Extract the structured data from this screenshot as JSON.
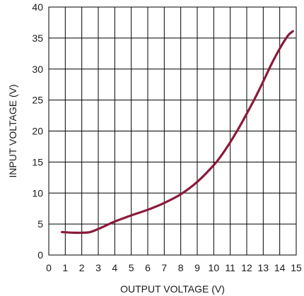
{
  "chart_data": {
    "type": "line",
    "xlabel": "OUTPUT VOLTAGE (V)",
    "ylabel": "INPUT VOLTAGE (V)",
    "xlim": [
      0,
      15
    ],
    "ylim": [
      0,
      40
    ],
    "xticks": [
      0,
      1,
      2,
      3,
      4,
      5,
      6,
      7,
      8,
      9,
      10,
      11,
      12,
      13,
      14,
      15
    ],
    "yticks": [
      0,
      5,
      10,
      15,
      20,
      25,
      30,
      35,
      40
    ],
    "grid": true,
    "series": [
      {
        "color": "#8b1a3a",
        "x": [
          0.8,
          1.5,
          2.0,
          2.5,
          3.0,
          3.5,
          4.0,
          5.0,
          6.0,
          7.0,
          8.0,
          9.0,
          10.0,
          10.5,
          11.0,
          11.5,
          12.0,
          12.5,
          13.0,
          13.5,
          14.0,
          14.5,
          14.8
        ],
        "y": [
          3.7,
          3.6,
          3.6,
          3.7,
          4.2,
          4.8,
          5.4,
          6.4,
          7.3,
          8.4,
          9.8,
          11.8,
          14.5,
          16.2,
          18.2,
          20.4,
          22.8,
          25.3,
          28.0,
          30.8,
          33.3,
          35.4,
          36.1
        ]
      }
    ]
  }
}
